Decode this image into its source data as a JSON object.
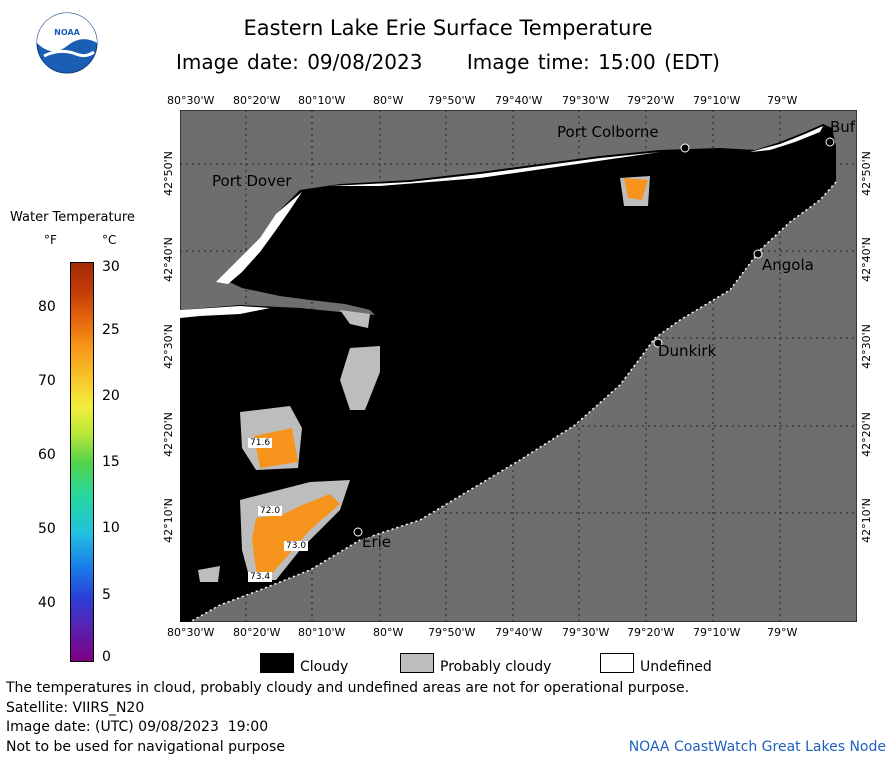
{
  "header": {
    "logo_text": "NOAA",
    "title": "Eastern Lake Erie Surface Temperature",
    "image_date": "Image date: 09/08/2023",
    "image_time": "Image time: 15:00 (EDT)"
  },
  "map": {
    "lon_ticks": [
      "80°30'W",
      "80°20'W",
      "80°10'W",
      "80°W",
      "79°50'W",
      "79°40'W",
      "79°30'W",
      "79°20'W",
      "79°10'W",
      "79°W"
    ],
    "lat_ticks": [
      "42°50'N",
      "42°40'N",
      "42°30'N",
      "42°20'N",
      "42°10'N"
    ],
    "places": {
      "port_colborne": "Port Colborne",
      "buffalo": "Buf",
      "port_dover": "Port Dover",
      "angola": "Angola",
      "dunkirk": "Dunkirk",
      "erie": "Erie"
    },
    "temp_labels": [
      "71.6",
      "72.0",
      "73.0",
      "73.4"
    ],
    "colors": {
      "land": "#6e6e6e",
      "cloud": "#000000",
      "probably_cloudy": "#bdbdbd",
      "undefined": "#ffffff",
      "water_warm": "#f7941d"
    }
  },
  "scale": {
    "title": "Water Temperature",
    "unit_f": "°F",
    "unit_c": "°C",
    "f_ticks": [
      "40",
      "50",
      "60",
      "70",
      "80"
    ],
    "c_ticks": [
      "0",
      "5",
      "10",
      "15",
      "20",
      "25",
      "30"
    ]
  },
  "legend": {
    "cloudy": "Cloudy",
    "probably_cloudy": "Probably cloudy",
    "undefined": "Undefined"
  },
  "footer": {
    "disclaimer": "The temperatures in cloud, probably cloudy and undefined areas are not for operational purpose.",
    "satellite": "Satellite: VIIRS_N20",
    "utc_date": "Image date: (UTC) 09/08/2023  19:00",
    "nav_warning": "Not to be used for navigational purpose",
    "credit": "NOAA CoastWatch Great Lakes Node"
  }
}
